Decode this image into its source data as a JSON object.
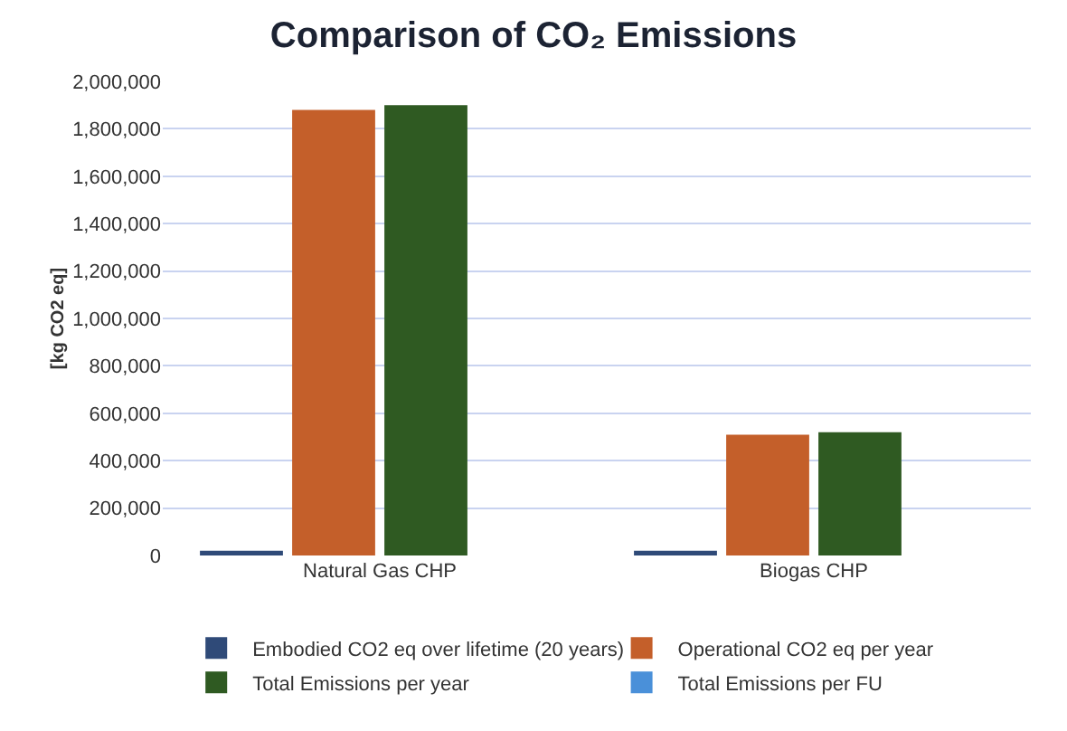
{
  "chart_data": {
    "type": "bar",
    "title": "Comparison of CO₂ Emissions",
    "ylabel": "[kg CO2 eq]",
    "categories": [
      "Natural Gas CHP",
      "Biogas CHP"
    ],
    "series": [
      {
        "name": "Embodied CO2 eq over lifetime (20 years)",
        "color": "#2f4a78",
        "values": [
          20000,
          20000
        ]
      },
      {
        "name": "Operational CO2 eq per year",
        "color": "#c45f2a",
        "values": [
          1880000,
          510000
        ]
      },
      {
        "name": "Total Emissions per year",
        "color": "#2f5a22",
        "values": [
          1900000,
          520000
        ]
      },
      {
        "name": "Total Emissions per FU",
        "color": "#4a90d9",
        "values": [
          null,
          null
        ]
      }
    ],
    "ylim": [
      0,
      2000000
    ],
    "yticks": [
      {
        "value": 0,
        "label": "0"
      },
      {
        "value": 200000,
        "label": "200,000"
      },
      {
        "value": 400000,
        "label": "400,000"
      },
      {
        "value": 600000,
        "label": "600,000"
      },
      {
        "value": 800000,
        "label": "800,000"
      },
      {
        "value": 1000000,
        "label": "1,000,000"
      },
      {
        "value": 1200000,
        "label": "1,200,000"
      },
      {
        "value": 1400000,
        "label": "1,400,000"
      },
      {
        "value": 1600000,
        "label": "1,600,000"
      },
      {
        "value": 1800000,
        "label": "1,800,000"
      },
      {
        "value": 2000000,
        "label": "2,000,000"
      }
    ],
    "grid": "y",
    "legend": "bottom"
  }
}
